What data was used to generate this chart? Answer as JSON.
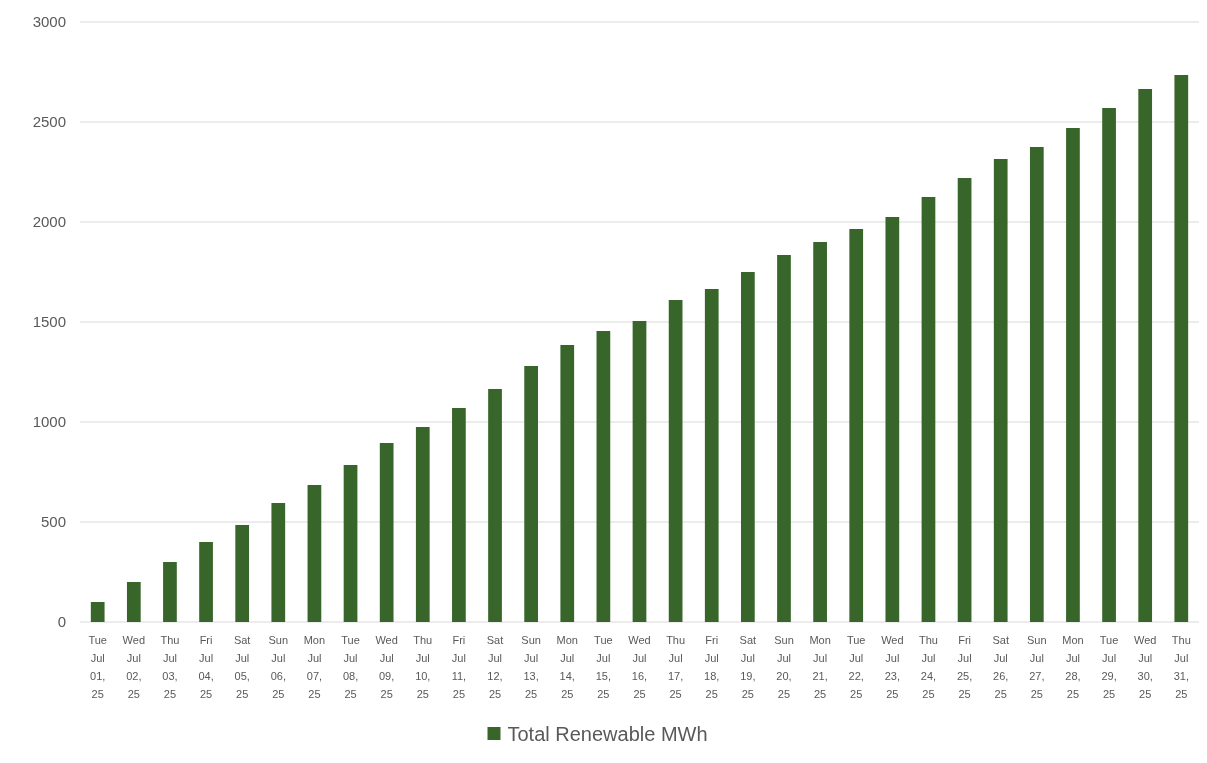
{
  "chart_data": {
    "type": "bar",
    "categories": [
      "Tue Jul 01, 25",
      "Wed Jul 02, 25",
      "Thu Jul 03, 25",
      "Fri Jul 04, 25",
      "Sat Jul 05, 25",
      "Sun Jul 06, 25",
      "Mon Jul 07, 25",
      "Tue Jul 08, 25",
      "Wed Jul 09, 25",
      "Thu Jul 10, 25",
      "Fri Jul 11, 25",
      "Sat Jul 12, 25",
      "Sun Jul 13, 25",
      "Mon Jul 14, 25",
      "Tue Jul 15, 25",
      "Wed Jul 16, 25",
      "Thu Jul 17, 25",
      "Fri Jul 18, 25",
      "Sat Jul 19, 25",
      "Sun Jul 20, 25",
      "Mon Jul 21, 25",
      "Tue Jul 22, 25",
      "Wed Jul 23, 25",
      "Thu Jul 24, 25",
      "Fri Jul 25, 25",
      "Sat Jul 26, 25",
      "Sun Jul 27, 25",
      "Mon Jul 28, 25",
      "Tue Jul 29, 25",
      "Wed Jul 30, 25",
      "Thu Jul 31, 25"
    ],
    "series": [
      {
        "name": "Total Renewable MWh",
        "color": "#38662a",
        "values": [
          100,
          200,
          300,
          400,
          485,
          595,
          685,
          785,
          895,
          975,
          1070,
          1165,
          1280,
          1385,
          1455,
          1505,
          1610,
          1665,
          1750,
          1835,
          1900,
          1965,
          2025,
          2125,
          2220,
          2315,
          2375,
          2470,
          2570,
          2665,
          2735
        ]
      }
    ],
    "ylim": [
      0,
      3000
    ],
    "yticks": [
      0,
      500,
      1000,
      1500,
      2000,
      2500,
      3000
    ],
    "grid": "y",
    "legend": "bottom"
  }
}
